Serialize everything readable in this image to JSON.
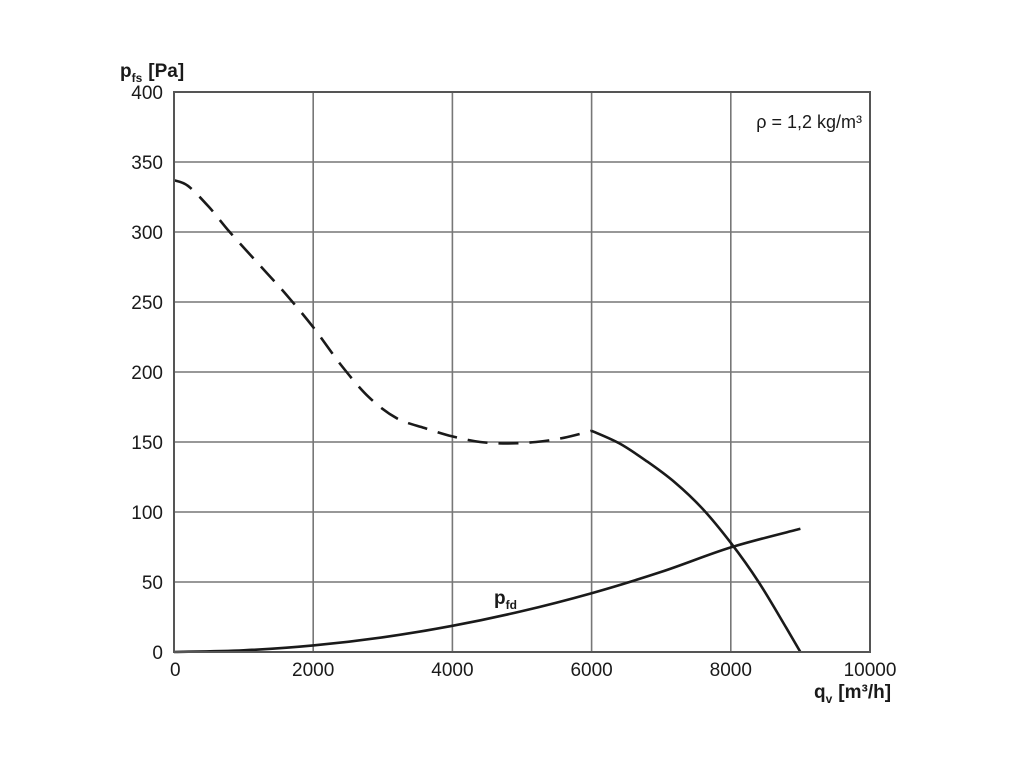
{
  "chart_data": {
    "type": "line",
    "ylabel": {
      "main": "p",
      "sub": "fs",
      "unit": "[Pa]"
    },
    "xlabel": {
      "main": "q",
      "sub": "v",
      "unit": "[m³/h]"
    },
    "xlim": [
      0,
      10000
    ],
    "ylim": [
      0,
      400
    ],
    "xticks": [
      0,
      2000,
      4000,
      6000,
      8000,
      10000
    ],
    "yticks": [
      0,
      50,
      100,
      150,
      200,
      250,
      300,
      350,
      400
    ],
    "grid": true,
    "annotation": "ρ = 1,2 kg/m³",
    "series": [
      {
        "style": "dashed",
        "x": [
          0,
          200,
          500,
          800,
          1200,
          1600,
          2000,
          2400,
          2800,
          3200,
          3600,
          4000,
          4400,
          4800,
          5200,
          5600,
          6000
        ],
        "y": [
          337,
          333,
          318,
          300,
          278,
          256,
          232,
          205,
          182,
          167,
          160,
          154,
          150,
          149,
          150,
          153,
          158
        ]
      },
      {
        "style": "solid",
        "x": [
          6000,
          6400,
          6800,
          7200,
          7600,
          8000,
          8400,
          8800,
          9000
        ],
        "y": [
          158,
          149,
          136,
          121,
          102,
          78,
          50,
          17,
          0
        ]
      },
      {
        "name": "p_fd",
        "label": {
          "main": "p",
          "sub": "fd"
        },
        "style": "solid",
        "x": [
          0,
          1000,
          2000,
          3000,
          4000,
          5000,
          6000,
          7000,
          8000,
          9000
        ],
        "y": [
          0,
          1.2,
          4.7,
          10.5,
          18.7,
          29.2,
          42.0,
          57.2,
          74.7,
          88
        ]
      }
    ]
  }
}
